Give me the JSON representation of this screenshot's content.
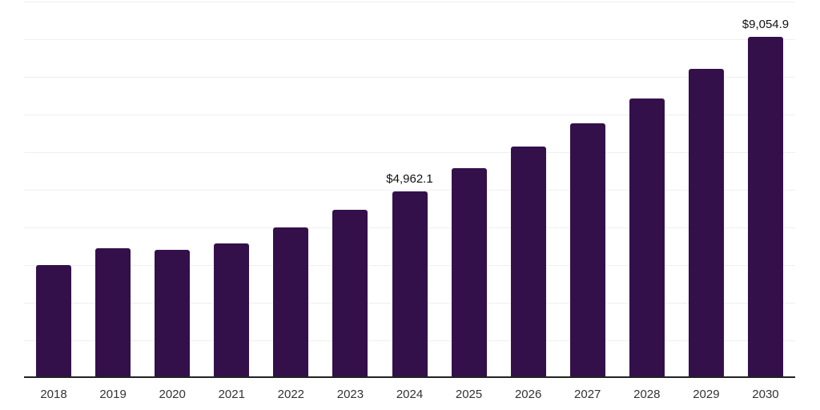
{
  "chart_data": {
    "type": "bar",
    "title": "",
    "xlabel": "",
    "ylabel": "",
    "categories": [
      "2018",
      "2019",
      "2020",
      "2021",
      "2022",
      "2023",
      "2024",
      "2025",
      "2026",
      "2027",
      "2028",
      "2029",
      "2030"
    ],
    "values": [
      2990,
      3450,
      3400,
      3580,
      3990,
      4460,
      4962.1,
      5580,
      6140,
      6770,
      7430,
      8210,
      9054.9
    ],
    "data_labels": [
      {
        "category": "2024",
        "text": "$4,962.1"
      },
      {
        "category": "2030",
        "text": "$9,054.9"
      }
    ],
    "ylim": [
      0,
      10000
    ],
    "gridline_step": 1000,
    "grid": true,
    "legend": false,
    "y_axis_tick_labels_visible": false,
    "bar_color": "#34104b",
    "gridline_color": "#efeff1",
    "axis_line_color": "#222222",
    "data_label_color": "#111111",
    "tick_label_color": "#333333",
    "background_color": "#ffffff"
  }
}
